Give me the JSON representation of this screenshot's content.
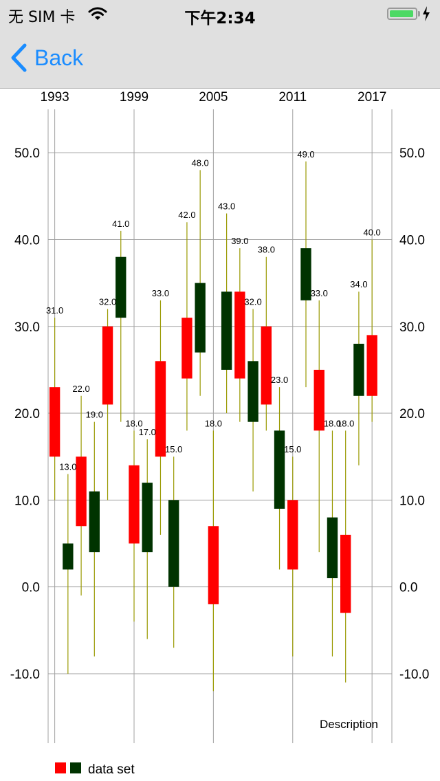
{
  "status_bar": {
    "carrier": "无 SIM 卡",
    "time": "下午2:34",
    "battery_level": 0.95
  },
  "nav": {
    "back_label": "Back"
  },
  "chart_data": {
    "type": "candlestick",
    "x_ticks": [
      "1993",
      "1999",
      "2005",
      "2011",
      "2017"
    ],
    "y_ticks": [
      "50.0",
      "40.0",
      "30.0",
      "20.0",
      "10.0",
      "0.0",
      "-10.0"
    ],
    "ylim": [
      -18,
      55
    ],
    "xlim": [
      1992.5,
      2018.5
    ],
    "description": "Description",
    "legend": {
      "label": "data set",
      "position": "bottom-left"
    },
    "grid": true,
    "colors": {
      "increasing": "#ff0000",
      "decreasing": "#003300",
      "shadow": "#999900",
      "grid": "#a0a0a0"
    },
    "series": [
      {
        "name": "data set",
        "points": [
          {
            "x": 1993,
            "open": 15,
            "close": 23,
            "high": 31,
            "low": 10
          },
          {
            "x": 1994,
            "open": 5,
            "close": 2,
            "high": 13,
            "low": -10
          },
          {
            "x": 1995,
            "open": 7,
            "close": 15,
            "high": 22,
            "low": -1
          },
          {
            "x": 1996,
            "open": 11,
            "close": 4,
            "high": 19,
            "low": -8
          },
          {
            "x": 1997,
            "open": 21,
            "close": 30,
            "high": 32,
            "low": 10
          },
          {
            "x": 1998,
            "open": 38,
            "close": 31,
            "high": 41,
            "low": 19
          },
          {
            "x": 1999,
            "open": 5,
            "close": 14,
            "high": 18,
            "low": -4
          },
          {
            "x": 2000,
            "open": 12,
            "close": 4,
            "high": 17,
            "low": -6
          },
          {
            "x": 2001,
            "open": 15,
            "close": 26,
            "high": 33,
            "low": 6
          },
          {
            "x": 2002,
            "open": 10,
            "close": 0,
            "high": 15,
            "low": -7
          },
          {
            "x": 2003,
            "open": 24,
            "close": 31,
            "high": 42,
            "low": 18
          },
          {
            "x": 2004,
            "open": 35,
            "close": 27,
            "high": 48,
            "low": 22
          },
          {
            "x": 2005,
            "open": -2,
            "close": 7,
            "high": 18,
            "low": -12
          },
          {
            "x": 2006,
            "open": 34,
            "close": 25,
            "high": 43,
            "low": 20
          },
          {
            "x": 2007,
            "open": 24,
            "close": 34,
            "high": 39,
            "low": 19
          },
          {
            "x": 2008,
            "open": 26,
            "close": 19,
            "high": 32,
            "low": 11
          },
          {
            "x": 2009,
            "open": 21,
            "close": 30,
            "high": 38,
            "low": 18
          },
          {
            "x": 2010,
            "open": 18,
            "close": 9,
            "high": 23,
            "low": 2
          },
          {
            "x": 2011,
            "open": 2,
            "close": 10,
            "high": 15,
            "low": -8
          },
          {
            "x": 2012,
            "open": 39,
            "close": 33,
            "high": 49,
            "low": 23
          },
          {
            "x": 2013,
            "open": 18,
            "close": 25,
            "high": 33,
            "low": 4
          },
          {
            "x": 2014,
            "open": 8,
            "close": 1,
            "high": 18,
            "low": -8
          },
          {
            "x": 2015,
            "open": -3,
            "close": 6,
            "high": 18,
            "low": -11
          },
          {
            "x": 2016,
            "open": 28,
            "close": 22,
            "high": 34,
            "low": 14
          },
          {
            "x": 2017,
            "open": 22,
            "close": 29,
            "high": 40,
            "low": 19
          }
        ]
      }
    ]
  }
}
